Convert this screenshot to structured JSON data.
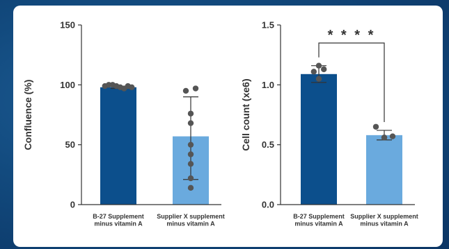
{
  "colors": {
    "bar_dark": "#0c4f8c",
    "bar_light": "#6aaade",
    "points": "#555555",
    "axis": "#333333"
  },
  "chart_data": [
    {
      "type": "bar",
      "categories": [
        [
          "B-27 Supplement",
          "minus vitamin A"
        ],
        [
          "Supplier X supplement",
          "minus vitamin A"
        ]
      ],
      "values": [
        98,
        57
      ],
      "error_bars": [
        [
          97,
          99
        ],
        [
          21,
          90
        ]
      ],
      "points": [
        [
          99,
          100,
          100,
          99,
          98,
          97,
          99,
          98
        ],
        [
          95,
          97,
          76,
          68,
          50,
          42,
          34,
          22,
          14
        ]
      ],
      "ylabel": "Confluence (%)",
      "ylim": [
        0,
        150
      ],
      "yticks": [
        "0",
        "50",
        "100",
        "150"
      ],
      "bar_colors": [
        "#0c4f8c",
        "#6aaade"
      ]
    },
    {
      "type": "bar",
      "categories": [
        [
          "B-27 Supplement",
          "minus vitamin A"
        ],
        [
          "Supplier X supplement",
          "minus vitamin A"
        ]
      ],
      "values": [
        1.09,
        0.58
      ],
      "error_bars": [
        [
          1.02,
          1.16
        ],
        [
          0.54,
          0.62
        ]
      ],
      "points": [
        [
          1.16,
          1.11,
          1.13,
          1.05
        ],
        [
          0.56,
          0.65,
          0.57,
          0.56
        ]
      ],
      "ylabel": "Cell count (xe6)",
      "ylim": [
        0,
        1.5
      ],
      "yticks": [
        "0.0",
        "0.5",
        "1.0",
        "1.5"
      ],
      "bar_colors": [
        "#0c4f8c",
        "#6aaade"
      ],
      "significance": "****"
    }
  ]
}
